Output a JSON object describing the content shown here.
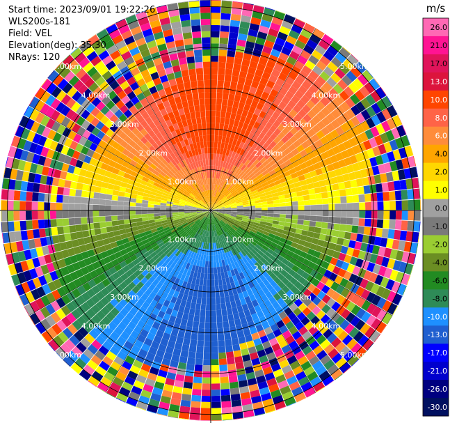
{
  "header": {
    "start_time": "Start time: 2023/09/01 19:22:26",
    "instrument": "WLS200s-181",
    "field": "Field: VEL",
    "elevation": "Elevation(deg): 35.30",
    "nrays": "NRays: 120"
  },
  "chart_data": {
    "type": "heatmap",
    "projection": "polar (PPI)",
    "field": "VEL",
    "n_rays": 120,
    "range_ring_labels": [
      "1.00km",
      "2.00km",
      "3.00km",
      "4.00km",
      "5.00km"
    ],
    "range_rings_km": [
      1,
      2,
      3,
      4,
      5
    ],
    "colorbar": {
      "unit": "m/s",
      "tick_labels": [
        "26.0",
        "21.0",
        "17.0",
        "13.0",
        "10.0",
        "8.0",
        "6.0",
        "4.0",
        "2.0",
        "1.0",
        "0.0",
        "-1.0",
        "-2.0",
        "-4.0",
        "-6.0",
        "-8.0",
        "-10.0",
        "-13.0",
        "-17.0",
        "-21.0",
        "-26.0",
        "-30.0"
      ],
      "colors": [
        "#ff69b4",
        "#ff1493",
        "#e0145a",
        "#dc143c",
        "#ff4500",
        "#ff6347",
        "#ff8c3a",
        "#ffa500",
        "#ffd700",
        "#ffff00",
        "#a0a0a0",
        "#7a7a7a",
        "#9acd32",
        "#6b8e23",
        "#228b22",
        "#2e8b57",
        "#1e90ff",
        "#1f5fd0",
        "#0000ff",
        "#0000cd",
        "#000080",
        "#001060"
      ]
    }
  }
}
